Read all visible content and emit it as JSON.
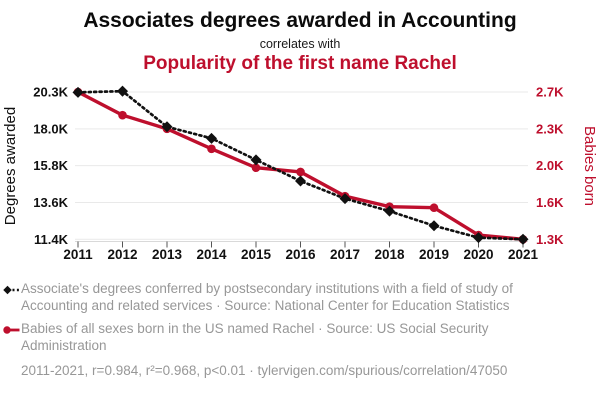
{
  "header": {
    "title": "Associates degrees awarded in Accounting",
    "connector": "correlates with",
    "subtitle": "Popularity of the first name Rachel"
  },
  "colors": {
    "accent_red": "#be0f2d",
    "series_black": "#111111",
    "legend_gray": "#979797",
    "gridline": "#e9e9e9",
    "axis_line": "#d9d9d9",
    "tick_mark": "#555555"
  },
  "chart_data": {
    "type": "line",
    "x": [
      2011,
      2012,
      2013,
      2014,
      2015,
      2016,
      2017,
      2018,
      2019,
      2020,
      2021
    ],
    "x_ticks": [
      "2011",
      "2012",
      "2013",
      "2014",
      "2015",
      "2016",
      "2017",
      "2018",
      "2019",
      "2020",
      "2021"
    ],
    "series": [
      {
        "name": "Degrees awarded",
        "axis": "left",
        "style": "dotted-diamond",
        "color": "#111111",
        "values": [
          20280,
          20350,
          18200,
          17500,
          16200,
          14920,
          13860,
          13100,
          12220,
          11500,
          11400
        ]
      },
      {
        "name": "Babies born",
        "axis": "right",
        "style": "solid-circle",
        "color": "#be0f2d",
        "values": [
          2700,
          2480,
          2350,
          2160,
          1980,
          1940,
          1710,
          1610,
          1600,
          1340,
          1300
        ]
      }
    ],
    "left_axis": {
      "label": "Degrees awarded",
      "min": 11400,
      "max": 20300,
      "ticks": [
        "20.3K",
        "18.0K",
        "15.8K",
        "13.6K",
        "11.4K"
      ]
    },
    "right_axis": {
      "label": "Babies born",
      "min": 1300,
      "max": 2700,
      "ticks": [
        "2.7K",
        "2.3K",
        "2.0K",
        "1.6K",
        "1.3K"
      ]
    },
    "grid": "horizontal-only",
    "legend_position": "bottom"
  },
  "legend": {
    "items": [
      {
        "icon": "black-diamond-dotted-line",
        "text": "Associate's degrees conferred by postsecondary institutions with a field of study of Accounting and related services · Source: National Center for Education Statistics"
      },
      {
        "icon": "red-circle-solid-line",
        "text": "Babies of all sexes born in the US named Rachel · Source: US Social Security Administration"
      }
    ]
  },
  "footer": {
    "text": "2011-2021, r=0.984, r²=0.968, p<0.01 · tylervigen.com/spurious/correlation/47050"
  }
}
